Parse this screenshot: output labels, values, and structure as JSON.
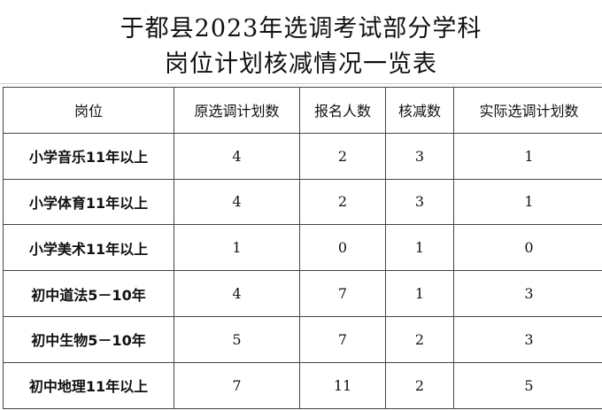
{
  "title": {
    "line1": "于都县2023年选调考试部分学科",
    "line2": "岗位计划核减情况一览表"
  },
  "table": {
    "headers": [
      "岗位",
      "原选调计划数",
      "报名人数",
      "核减数",
      "实际选调计划数"
    ],
    "rows": [
      [
        "小学音乐11年以上",
        "4",
        "2",
        "3",
        "1"
      ],
      [
        "小学体育11年以上",
        "4",
        "2",
        "3",
        "1"
      ],
      [
        "小学美术11年以上",
        "1",
        "0",
        "1",
        "0"
      ],
      [
        "初中道法5－10年",
        "4",
        "7",
        "1",
        "3"
      ],
      [
        "初中生物5－10年",
        "5",
        "7",
        "2",
        "3"
      ],
      [
        "初中地理11年以上",
        "7",
        "11",
        "2",
        "5"
      ]
    ]
  }
}
